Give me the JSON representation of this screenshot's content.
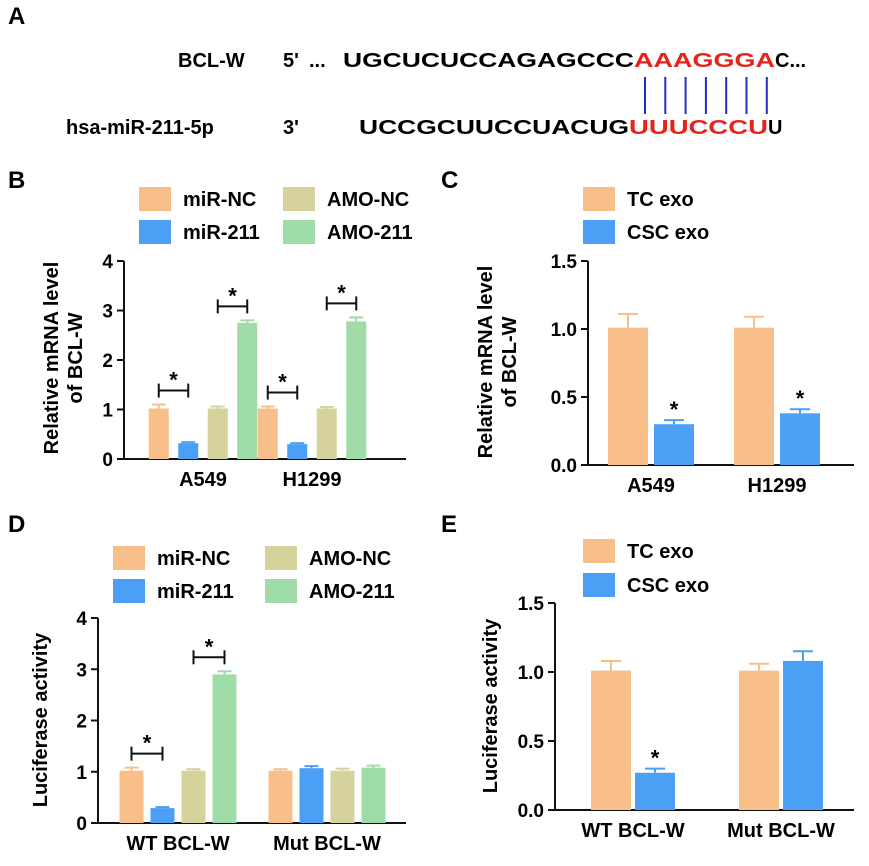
{
  "panel_a": {
    "letter": "A",
    "target_label": "BCL-W",
    "target_end": "5'",
    "target_ellipsis_left": "...",
    "target_seq_black": "UGCUCUCCAGAGCCC",
    "target_seq_red": "AAAGGGA",
    "target_seq_tail": "C...",
    "mirna_label": "hsa-miR-211-5p",
    "mirna_end": "3'",
    "mirna_seq_black": "UCCGCUUCCUACUG",
    "mirna_seq_red": "UUUCCCU",
    "mirna_seq_tail": "U",
    "seed_color": "#e8221a",
    "pair_line_color": "#1f2fc8"
  },
  "colors": {
    "miR-NC": "#f9bf8a",
    "miR-211": "#4ba0f5",
    "AMO-NC": "#d6d29c",
    "AMO-211": "#9fdca7",
    "TC exo": "#f9bf8a",
    "CSC exo": "#4ba0f5"
  },
  "chart_data": [
    {
      "panel": "B",
      "type": "bar",
      "ylabel": [
        "Relative mRNA level",
        "of BCL-W"
      ],
      "ylim": [
        0,
        4
      ],
      "yticks": [
        "0",
        "1",
        "2",
        "3",
        "4"
      ],
      "categories": [
        "A549",
        "H1299"
      ],
      "series": [
        {
          "name": "miR-NC",
          "values": [
            1.02,
            1.02
          ],
          "errors": [
            0.08,
            0.04
          ]
        },
        {
          "name": "miR-211",
          "values": [
            0.32,
            0.3
          ],
          "errors": [
            0.02,
            0.02
          ]
        },
        {
          "name": "AMO-NC",
          "values": [
            1.02,
            1.02
          ],
          "errors": [
            0.04,
            0.03
          ]
        },
        {
          "name": "AMO-211",
          "values": [
            2.75,
            2.78
          ],
          "errors": [
            0.05,
            0.08
          ]
        }
      ],
      "significance": [
        {
          "category": 0,
          "from": 0,
          "to": 1,
          "label": "*"
        },
        {
          "category": 0,
          "from": 2,
          "to": 3,
          "label": "*"
        },
        {
          "category": 1,
          "from": 0,
          "to": 1,
          "label": "*"
        },
        {
          "category": 1,
          "from": 2,
          "to": 3,
          "label": "*"
        }
      ],
      "legend": {
        "placement": "top",
        "columns": 2
      }
    },
    {
      "panel": "C",
      "type": "bar",
      "ylabel": [
        "Relative mRNA level",
        "of BCL-W"
      ],
      "ylim": [
        0,
        1.5
      ],
      "yticks": [
        "0.0",
        "0.5",
        "1.0",
        "1.5"
      ],
      "categories": [
        "A549",
        "H1299"
      ],
      "series": [
        {
          "name": "TC exo",
          "values": [
            1.01,
            1.01
          ],
          "errors": [
            0.1,
            0.08
          ]
        },
        {
          "name": "CSC exo",
          "values": [
            0.3,
            0.38
          ],
          "errors": [
            0.03,
            0.03
          ]
        }
      ],
      "significance": [
        {
          "category": 0,
          "series": 1,
          "label": "*"
        },
        {
          "category": 1,
          "series": 1,
          "label": "*"
        }
      ],
      "legend": {
        "placement": "top-left",
        "columns": 1
      }
    },
    {
      "panel": "D",
      "type": "bar",
      "ylabel": [
        "Luciferase activity"
      ],
      "ylim": [
        0,
        4
      ],
      "yticks": [
        "0",
        "1",
        "2",
        "3",
        "4"
      ],
      "categories": [
        "WT BCL-W",
        "Mut BCL-W"
      ],
      "series": [
        {
          "name": "miR-NC",
          "values": [
            1.02,
            1.02
          ],
          "errors": [
            0.06,
            0.03
          ]
        },
        {
          "name": "miR-211",
          "values": [
            0.29,
            1.07
          ],
          "errors": [
            0.02,
            0.04
          ]
        },
        {
          "name": "AMO-NC",
          "values": [
            1.02,
            1.02
          ],
          "errors": [
            0.03,
            0.04
          ]
        },
        {
          "name": "AMO-211",
          "values": [
            2.9,
            1.08
          ],
          "errors": [
            0.06,
            0.04
          ]
        }
      ],
      "significance": [
        {
          "category": 0,
          "from": 0,
          "to": 1,
          "label": "*"
        },
        {
          "category": 0,
          "from": 2,
          "to": 3,
          "label": "*"
        }
      ],
      "legend": {
        "placement": "top",
        "columns": 2
      }
    },
    {
      "panel": "E",
      "type": "bar",
      "ylabel": [
        "Luciferase activity"
      ],
      "ylim": [
        0,
        1.5
      ],
      "yticks": [
        "0.0",
        "0.5",
        "1.0",
        "1.5"
      ],
      "categories": [
        "WT BCL-W",
        "Mut BCL-W"
      ],
      "series": [
        {
          "name": "TC exo",
          "values": [
            1.01,
            1.01
          ],
          "errors": [
            0.07,
            0.05
          ]
        },
        {
          "name": "CSC exo",
          "values": [
            0.27,
            1.08
          ],
          "errors": [
            0.03,
            0.07
          ]
        }
      ],
      "significance": [
        {
          "category": 0,
          "series": 1,
          "label": "*"
        }
      ],
      "legend": {
        "placement": "top-left",
        "columns": 1
      }
    }
  ]
}
